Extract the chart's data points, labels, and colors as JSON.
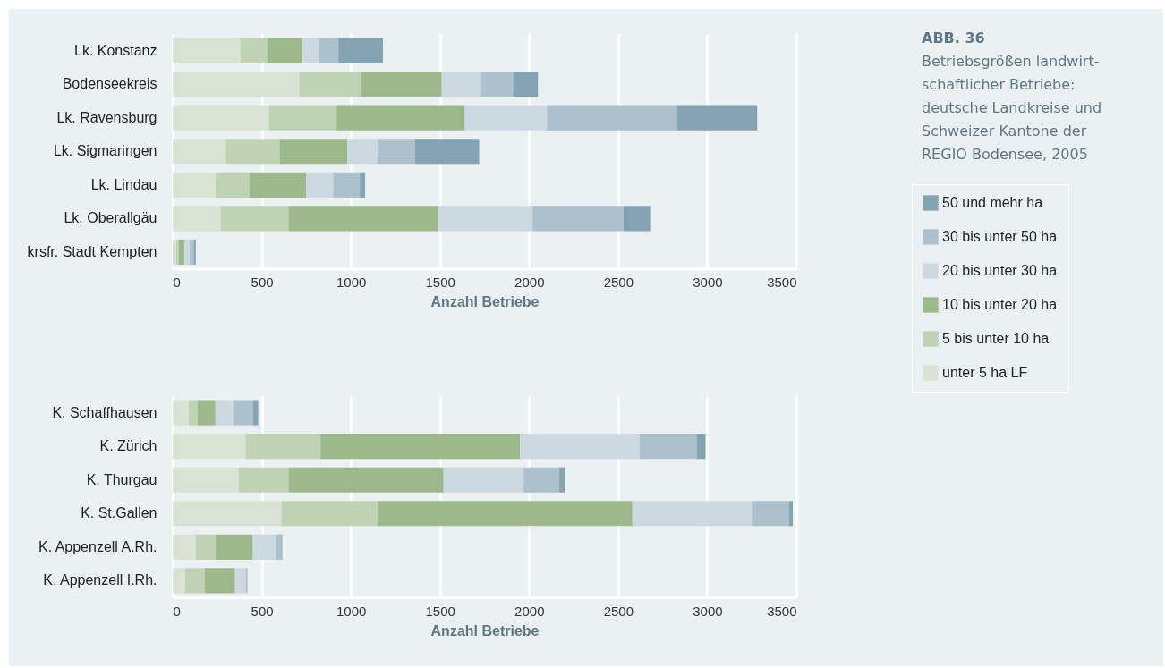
{
  "chart_data": [
    {
      "type": "bar",
      "orientation": "horizontal",
      "stacked": true,
      "xlabel": "Anzahl Betriebe",
      "legend": "right",
      "grid": "x",
      "categories": [
        "Lk. Konstanz",
        "Bodenseekreis",
        "Lk. Ravensburg",
        "Lk. Sigmaringen",
        "Lk. Lindau",
        "Lk. Oberallgäu",
        "krsfr. Stadt Kempten"
      ],
      "xlim": [
        0,
        3500
      ],
      "xticks": [
        0,
        500,
        1000,
        1500,
        2000,
        2500,
        3000,
        3500
      ],
      "series": [
        {
          "name": "unter 5 ha LF",
          "color": "#d9e3d3",
          "values": [
            380,
            710,
            540,
            300,
            240,
            270,
            20
          ]
        },
        {
          "name": "5 bis unter 10 ha",
          "color": "#bfd2b4",
          "values": [
            150,
            350,
            380,
            300,
            190,
            380,
            15
          ]
        },
        {
          "name": "10 bis unter 20 ha",
          "color": "#9db98b",
          "values": [
            200,
            450,
            720,
            380,
            320,
            840,
            30
          ]
        },
        {
          "name": "20 bis unter 30 ha",
          "color": "#ccd9e1",
          "values": [
            90,
            220,
            460,
            170,
            150,
            530,
            30
          ]
        },
        {
          "name": "30 bis unter 50 ha",
          "color": "#adc1cd",
          "values": [
            110,
            180,
            730,
            210,
            150,
            510,
            25
          ]
        },
        {
          "name": "50 und mehr ha",
          "color": "#84a4b4",
          "values": [
            250,
            140,
            450,
            360,
            30,
            150,
            10
          ]
        }
      ]
    },
    {
      "type": "bar",
      "orientation": "horizontal",
      "stacked": true,
      "xlabel": "Anzahl Betriebe",
      "grid": "x",
      "categories": [
        "K. Schaffhausen",
        "K. Zürich",
        "K. Thurgau",
        "K. St.Gallen",
        "K. Appenzell A.Rh.",
        "K. Appenzell I.Rh."
      ],
      "xlim": [
        0,
        3500
      ],
      "xticks": [
        0,
        500,
        1000,
        1500,
        2000,
        2500,
        3000,
        3500
      ],
      "series": [
        {
          "color": "#d9e3d3",
          "values": [
            90,
            410,
            370,
            610,
            130,
            70
          ]
        },
        {
          "color": "#bfd2b4",
          "values": [
            50,
            420,
            280,
            540,
            110,
            110
          ]
        },
        {
          "color": "#9db98b",
          "values": [
            100,
            1120,
            870,
            1430,
            210,
            170
          ]
        },
        {
          "color": "#ccd9e1",
          "values": [
            100,
            670,
            450,
            670,
            130,
            60
          ]
        },
        {
          "color": "#adc1cd",
          "values": [
            110,
            320,
            200,
            210,
            30,
            10
          ]
        },
        {
          "color": "#84a4b4",
          "values": [
            30,
            50,
            30,
            20,
            5,
            0
          ]
        }
      ]
    },
    {
      "type": "other",
      "title": "ABB. 36",
      "subtitle": "Betriebsgrößen landwirt-schaftlicher Betriebe: deutsche Landkreise und Schweizer Kantone der REGIO Bodensee, 2005"
    }
  ]
}
